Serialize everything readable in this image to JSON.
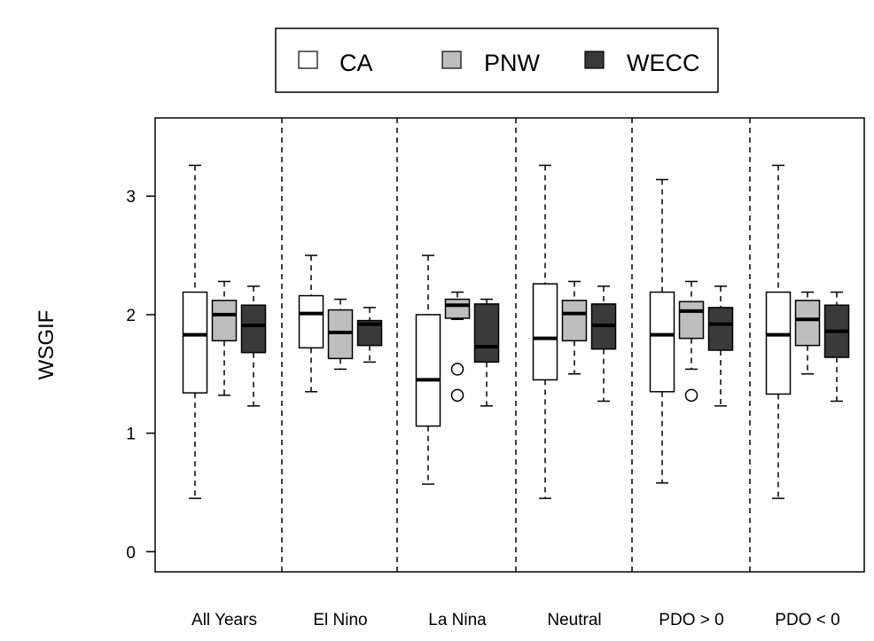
{
  "chart_data": {
    "type": "boxplot",
    "title": "",
    "xlabel": "",
    "ylabel": "WSGIF",
    "ylim": [
      -0.17,
      3.66
    ],
    "yticks": [
      0,
      1,
      2,
      3
    ],
    "grid": false,
    "legend_position": "top-center (outside plot)",
    "categories": [
      "All Years",
      "El Nino",
      "La Nina",
      "Neutral",
      "PDO > 0",
      "PDO < 0"
    ],
    "series": [
      {
        "name": "CA",
        "color": "#ffffff",
        "boxes": [
          {
            "low": 0.45,
            "q1": 1.34,
            "median": 1.83,
            "q3": 2.19,
            "high": 3.26,
            "outliers": []
          },
          {
            "low": 1.35,
            "q1": 1.72,
            "median": 2.01,
            "q3": 2.16,
            "high": 2.5,
            "outliers": []
          },
          {
            "low": 0.57,
            "q1": 1.06,
            "median": 1.45,
            "q3": 2.0,
            "high": 2.5,
            "outliers": []
          },
          {
            "low": 0.45,
            "q1": 1.45,
            "median": 1.8,
            "q3": 2.26,
            "high": 3.26,
            "outliers": []
          },
          {
            "low": 0.58,
            "q1": 1.35,
            "median": 1.83,
            "q3": 2.19,
            "high": 3.14,
            "outliers": []
          },
          {
            "low": 0.45,
            "q1": 1.33,
            "median": 1.83,
            "q3": 2.19,
            "high": 3.26,
            "outliers": []
          }
        ]
      },
      {
        "name": "PNW",
        "color": "#bebebe",
        "boxes": [
          {
            "low": 1.32,
            "q1": 1.78,
            "median": 2.0,
            "q3": 2.12,
            "high": 2.28,
            "outliers": []
          },
          {
            "low": 1.54,
            "q1": 1.63,
            "median": 1.85,
            "q3": 2.04,
            "high": 2.13,
            "outliers": []
          },
          {
            "low": 1.96,
            "q1": 1.97,
            "median": 2.08,
            "q3": 2.13,
            "high": 2.19,
            "outliers": [
              1.54,
              1.32
            ]
          },
          {
            "low": 1.5,
            "q1": 1.78,
            "median": 2.01,
            "q3": 2.12,
            "high": 2.28,
            "outliers": []
          },
          {
            "low": 1.54,
            "q1": 1.8,
            "median": 2.03,
            "q3": 2.11,
            "high": 2.28,
            "outliers": [
              1.32
            ]
          },
          {
            "low": 1.5,
            "q1": 1.74,
            "median": 1.96,
            "q3": 2.12,
            "high": 2.19,
            "outliers": []
          }
        ]
      },
      {
        "name": "WECC",
        "color": "#3a3a3a",
        "boxes": [
          {
            "low": 1.23,
            "q1": 1.68,
            "median": 1.91,
            "q3": 2.08,
            "high": 2.24,
            "outliers": []
          },
          {
            "low": 1.6,
            "q1": 1.74,
            "median": 1.92,
            "q3": 1.95,
            "high": 2.06,
            "outliers": []
          },
          {
            "low": 1.23,
            "q1": 1.6,
            "median": 1.73,
            "q3": 2.09,
            "high": 2.13,
            "outliers": []
          },
          {
            "low": 1.27,
            "q1": 1.71,
            "median": 1.91,
            "q3": 2.09,
            "high": 2.24,
            "outliers": []
          },
          {
            "low": 1.23,
            "q1": 1.7,
            "median": 1.92,
            "q3": 2.06,
            "high": 2.24,
            "outliers": []
          },
          {
            "low": 1.27,
            "q1": 1.64,
            "median": 1.86,
            "q3": 2.08,
            "high": 2.19,
            "outliers": []
          }
        ]
      }
    ]
  }
}
